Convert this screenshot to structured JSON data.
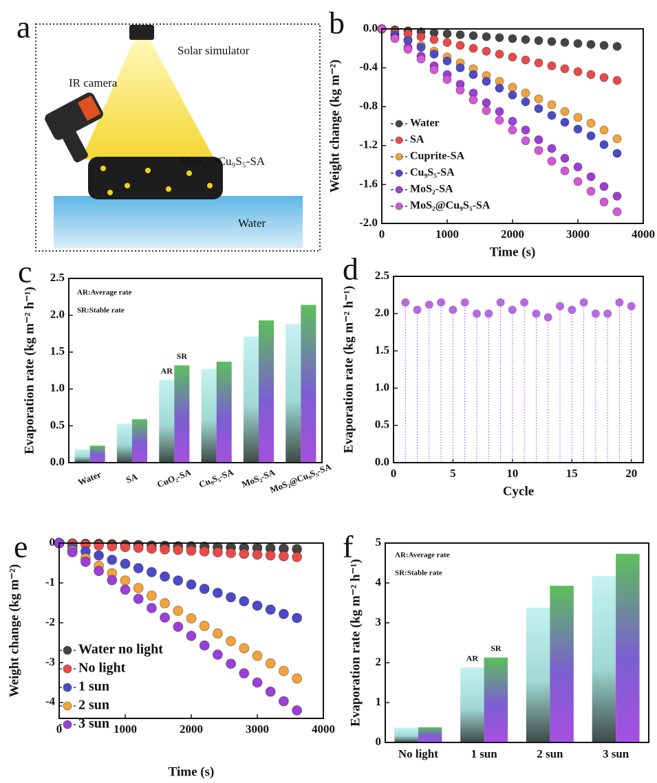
{
  "panel_a": {
    "label": "a",
    "texts": [
      "Solar  simulator",
      "IR  camera",
      "MoS₂@Cu₉S₅-SA",
      "Water"
    ]
  },
  "chart_data": [
    {
      "label": "b",
      "type": "scatter",
      "xlabel": "Time (s)",
      "ylabel": "Weight change (kg m⁻²)",
      "xlim": [
        0,
        4000
      ],
      "xticks": [
        0,
        1000,
        2000,
        3000,
        4000
      ],
      "ylim": [
        -2.0,
        0.0
      ],
      "yticks": [
        {
          "value": -2.0,
          "label": "-2.0"
        },
        -1.6,
        -1.2,
        -0.8,
        -0.4,
        {
          "value": 0,
          "label": "0.0"
        }
      ],
      "x": [
        0,
        200,
        400,
        600,
        800,
        1000,
        1200,
        1400,
        1600,
        1800,
        2000,
        2200,
        2400,
        2600,
        2800,
        3000,
        3200,
        3400,
        3600
      ],
      "series": [
        {
          "name": "Water",
          "color": "#444444",
          "values": [
            0,
            -0.01,
            -0.02,
            -0.03,
            -0.04,
            -0.05,
            -0.06,
            -0.07,
            -0.08,
            -0.09,
            -0.1,
            -0.11,
            -0.12,
            -0.13,
            -0.14,
            -0.15,
            -0.16,
            -0.17,
            -0.18
          ]
        },
        {
          "name": "SA",
          "color": "#e84a4a",
          "values": [
            0,
            -0.02,
            -0.05,
            -0.08,
            -0.11,
            -0.14,
            -0.17,
            -0.2,
            -0.23,
            -0.26,
            -0.29,
            -0.32,
            -0.35,
            -0.38,
            -0.41,
            -0.44,
            -0.47,
            -0.5,
            -0.53
          ]
        },
        {
          "name": "Cuprite-SA",
          "color": "#f2a33a",
          "values": [
            0,
            -0.05,
            -0.11,
            -0.17,
            -0.23,
            -0.29,
            -0.35,
            -0.41,
            -0.48,
            -0.54,
            -0.6,
            -0.66,
            -0.72,
            -0.78,
            -0.85,
            -0.91,
            -0.97,
            -1.04,
            -1.13
          ]
        },
        {
          "name": "Cu₉S₅-SA",
          "color": "#4b4bc8",
          "values": [
            0,
            -0.06,
            -0.12,
            -0.19,
            -0.26,
            -0.33,
            -0.4,
            -0.47,
            -0.54,
            -0.61,
            -0.68,
            -0.75,
            -0.82,
            -0.89,
            -0.96,
            -1.03,
            -1.1,
            -1.19,
            -1.28
          ]
        },
        {
          "name": "MoS₂-SA",
          "color": "#9b3fd8",
          "values": [
            0,
            -0.09,
            -0.19,
            -0.28,
            -0.38,
            -0.47,
            -0.57,
            -0.66,
            -0.76,
            -0.85,
            -0.95,
            -1.04,
            -1.14,
            -1.23,
            -1.33,
            -1.42,
            -1.52,
            -1.62,
            -1.72
          ]
        },
        {
          "name": "MoS₂@Cu₉S₅-SA",
          "color": "#d557d8",
          "values": [
            0,
            -0.1,
            -0.21,
            -0.31,
            -0.42,
            -0.52,
            -0.63,
            -0.73,
            -0.84,
            -0.94,
            -1.04,
            -1.15,
            -1.25,
            -1.36,
            -1.46,
            -1.57,
            -1.67,
            -1.78,
            -1.88
          ]
        }
      ]
    },
    {
      "label": "c",
      "type": "bar",
      "ylabel": "Evaporation  rate (kg m⁻² h⁻¹)",
      "notes": [
        "AR:Average rate",
        "SR:Stable rate"
      ],
      "categories": [
        "Water",
        "SA",
        "CuO₂-SA",
        "Cu₉S₅-SA",
        "MoS₂-SA",
        "MoS₂@Cu₉S₅-SA"
      ],
      "ylim": [
        0,
        2.5
      ],
      "yticks": [
        {
          "value": 0,
          "label": "0.0"
        },
        0.5,
        {
          "value": 1,
          "label": "1.0"
        },
        1.5,
        {
          "value": 2,
          "label": "2.0"
        },
        2.5
      ],
      "series": [
        {
          "name": "AR",
          "color": "#c4f2f0",
          "values": [
            0.18,
            0.53,
            1.12,
            1.27,
            1.71,
            1.88
          ]
        },
        {
          "name": "SR",
          "color": "#5cbf5c",
          "values": [
            0.23,
            0.59,
            1.32,
            1.37,
            1.93,
            2.14
          ]
        }
      ]
    },
    {
      "label": "d",
      "type": "stem",
      "xlabel": "Cycle",
      "ylabel": "Evaporation  rate (kg m⁻² h⁻¹)",
      "xlim": [
        0,
        21
      ],
      "xticks": [
        0,
        5,
        10,
        15,
        20
      ],
      "ylim": [
        0,
        2.5
      ],
      "yticks": [
        {
          "value": 0,
          "label": "0.0"
        },
        0.5,
        {
          "value": 1,
          "label": "1.0"
        },
        1.5,
        {
          "value": 2,
          "label": "2.0"
        },
        2.5
      ],
      "x": [
        1,
        2,
        3,
        4,
        5,
        6,
        7,
        8,
        9,
        10,
        11,
        12,
        13,
        14,
        15,
        16,
        17,
        18,
        19,
        20
      ],
      "series": [
        {
          "color": "#b36be0",
          "values": [
            2.15,
            2.05,
            2.12,
            2.15,
            2.05,
            2.15,
            2.0,
            2.0,
            2.15,
            2.05,
            2.15,
            2.0,
            1.95,
            2.1,
            2.05,
            2.15,
            2.0,
            2.0,
            2.15,
            2.1
          ]
        }
      ]
    },
    {
      "label": "e",
      "type": "scatter",
      "xlabel": "Time (s)",
      "ylabel": "Weight change (kg m⁻²)",
      "xlim": [
        0,
        4000
      ],
      "xticks": [
        0,
        1000,
        2000,
        3000,
        4000
      ],
      "ylim": [
        -4.4,
        0
      ],
      "yticks": [
        -4,
        -3,
        -2,
        -1,
        0
      ],
      "x": [
        0,
        200,
        400,
        600,
        800,
        1000,
        1200,
        1400,
        1600,
        1800,
        2000,
        2200,
        2400,
        2600,
        2800,
        3000,
        3200,
        3400,
        3600
      ],
      "series": [
        {
          "name": "Water no light",
          "color": "#444444",
          "values": [
            0,
            -0.01,
            -0.02,
            -0.02,
            -0.03,
            -0.04,
            -0.05,
            -0.06,
            -0.07,
            -0.08,
            -0.08,
            -0.09,
            -0.1,
            -0.11,
            -0.12,
            -0.12,
            -0.13,
            -0.14,
            -0.15
          ]
        },
        {
          "name": "No light",
          "color": "#e84a4a",
          "values": [
            0,
            -0.02,
            -0.04,
            -0.06,
            -0.08,
            -0.1,
            -0.12,
            -0.14,
            -0.16,
            -0.17,
            -0.19,
            -0.21,
            -0.23,
            -0.25,
            -0.27,
            -0.29,
            -0.31,
            -0.33,
            -0.35
          ]
        },
        {
          "name": "1 sun",
          "color": "#4b4bc8",
          "values": [
            0,
            -0.1,
            -0.21,
            -0.31,
            -0.42,
            -0.52,
            -0.63,
            -0.73,
            -0.84,
            -0.94,
            -1.04,
            -1.15,
            -1.25,
            -1.36,
            -1.46,
            -1.57,
            -1.67,
            -1.78,
            -1.88
          ]
        },
        {
          "name": "2 sun",
          "color": "#f2a33a",
          "values": [
            0,
            -0.19,
            -0.38,
            -0.57,
            -0.76,
            -0.94,
            -1.13,
            -1.32,
            -1.51,
            -1.7,
            -1.89,
            -2.08,
            -2.27,
            -2.46,
            -2.64,
            -2.83,
            -3.02,
            -3.21,
            -3.4
          ]
        },
        {
          "name": "3 sun",
          "color": "#9b3fd8",
          "values": [
            0,
            -0.23,
            -0.47,
            -0.7,
            -0.93,
            -1.17,
            -1.4,
            -1.63,
            -1.87,
            -2.1,
            -2.33,
            -2.57,
            -2.8,
            -3.03,
            -3.27,
            -3.5,
            -3.73,
            -3.97,
            -4.2
          ]
        }
      ]
    },
    {
      "label": "f",
      "type": "bar",
      "ylabel": "Evaporation  rate (kg m⁻² h⁻¹)",
      "notes": [
        "AR:Average  rate",
        "SR:Stable rate"
      ],
      "categories": [
        "No light",
        "1 sun",
        "2 sun",
        "3 sun"
      ],
      "ylim": [
        0,
        5
      ],
      "yticks": [
        0,
        1,
        2,
        3,
        4,
        5
      ],
      "series": [
        {
          "name": "AR",
          "color": "#c4f2f0",
          "values": [
            0.37,
            1.88,
            3.38,
            4.17
          ]
        },
        {
          "name": "SR",
          "color": "#5cbf5c",
          "values": [
            0.38,
            2.13,
            3.93,
            4.73
          ]
        }
      ]
    }
  ]
}
